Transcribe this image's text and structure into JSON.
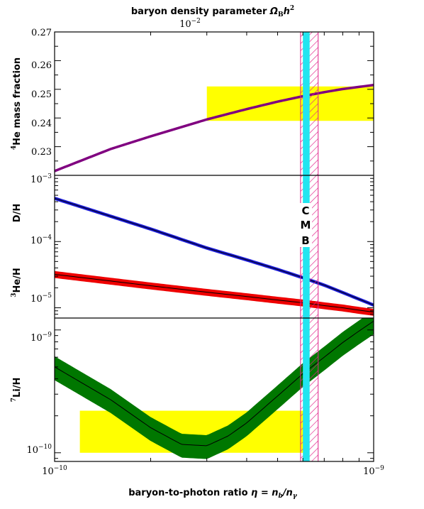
{
  "figure": {
    "title": "baryon density parameter",
    "title_symbol": "Ω",
    "title_symbol_sub": "B",
    "title_symbol_tail": "h",
    "title_symbol_sup": "2",
    "top_axis_tick_label": "10",
    "top_axis_tick_exp": "−2",
    "xlabel": "baryon-to-photon ratio",
    "xlabel_eq": "η = n",
    "xlabel_eq_sub1": "b",
    "xlabel_eq_mid": "/n",
    "xlabel_eq_sub2": "γ",
    "x_tick_labels": [
      {
        "base": "10",
        "exp": "−10"
      },
      {
        "base": "10",
        "exp": "−9"
      }
    ],
    "cmb_letters": [
      "C",
      "M",
      "B"
    ]
  },
  "colors": {
    "he4_curve": "#800080",
    "deuterium_band": "#1a1ad9",
    "he3_band": "#ee0000",
    "li7_band": "#007700",
    "observed_box": "#ffff00",
    "cmb_band": "#22e5f0",
    "cmb_hatch": "#e0208a"
  },
  "chart_data": [
    {
      "type": "line",
      "panel": "top",
      "ylabel": "He mass fraction",
      "ylabel_sup": "4",
      "x_scale": "log",
      "xlim": [
        1e-10,
        1e-09
      ],
      "ylim": [
        0.22,
        0.27
      ],
      "ytick_labels": [
        "0.23",
        "0.24",
        "0.25",
        "0.26",
        "0.27"
      ],
      "corner_label": {
        "base": "10",
        "exp": "−3"
      },
      "series": [
        {
          "key": "He4",
          "x": [
            1e-10,
            1.5e-10,
            2e-10,
            3e-10,
            4e-10,
            5e-10,
            6e-10,
            7e-10,
            8e-10,
            1e-09
          ],
          "y": [
            0.2215,
            0.2292,
            0.2336,
            0.2395,
            0.2431,
            0.2457,
            0.2476,
            0.249,
            0.2501,
            0.2515
          ]
        }
      ],
      "observed_region": {
        "x": [
          3e-10,
          1e-09
        ],
        "y": [
          0.239,
          0.251
        ]
      }
    },
    {
      "type": "area",
      "panel": "middle",
      "ylabel_upper": "D/H",
      "ylabel_lower": "He/H",
      "ylabel_lower_sup": "3",
      "x_scale": "log",
      "y_scale": "log",
      "xlim": [
        1e-10,
        1e-09
      ],
      "ylim": [
        7e-06,
        0.001
      ],
      "ytick_labels": [
        {
          "base": "10",
          "exp": "−5"
        },
        {
          "base": "10",
          "exp": "−4"
        }
      ],
      "series": [
        {
          "key": "D/H",
          "x": [
            1e-10,
            2e-10,
            3e-10,
            4e-10,
            5e-10,
            6e-10,
            7e-10,
            8e-10,
            9e-10,
            1e-09
          ],
          "y": [
            0.00045,
            0.000155,
            8e-05,
            5.3e-05,
            3.8e-05,
            2.85e-05,
            2.2e-05,
            1.7e-05,
            1.35e-05,
            1.1e-05
          ],
          "relative_width": 0.06
        },
        {
          "key": "He3/H",
          "x": [
            1e-10,
            2e-10,
            3e-10,
            4e-10,
            5e-10,
            6e-10,
            7e-10,
            8e-10,
            9e-10,
            1e-09
          ],
          "y": [
            3.2e-05,
            2.15e-05,
            1.72e-05,
            1.48e-05,
            1.31e-05,
            1.19e-05,
            1.08e-05,
            1e-05,
            9.2e-06,
            8.6e-06
          ],
          "relative_width": 0.12
        }
      ]
    },
    {
      "type": "area",
      "panel": "bottom",
      "ylabel": "Li/H",
      "ylabel_sup": "7",
      "x_scale": "log",
      "y_scale": "log",
      "xlim": [
        1e-10,
        1e-09
      ],
      "ylim": [
        8.5e-11,
        1.25e-09
      ],
      "ytick_labels": [
        {
          "base": "10",
          "exp": "−10"
        },
        {
          "base": "10",
          "exp": "−9"
        }
      ],
      "series": [
        {
          "key": "Li7/H",
          "x": [
            1e-10,
            1.5e-10,
            2e-10,
            2.5e-10,
            3e-10,
            3.5e-10,
            4e-10,
            5e-10,
            6e-10,
            7e-10,
            8e-10,
            9e-10,
            1e-09
          ],
          "y": [
            5e-10,
            2.7e-10,
            1.6e-10,
            1.17e-10,
            1.14e-10,
            1.37e-10,
            1.75e-10,
            2.9e-10,
            4.4e-10,
            6e-10,
            7.9e-10,
            9.8e-10,
            1.18e-09
          ],
          "relative_width": 0.22
        }
      ],
      "observed_region": {
        "x": [
          1.2e-10,
          6.2e-10
        ],
        "y": [
          1e-10,
          2.2e-10
        ]
      }
    }
  ],
  "cmb_band": {
    "x_range": [
      6e-10,
      6.3e-10
    ],
    "hatched_range": [
      5.9e-10,
      6.7e-10
    ]
  }
}
